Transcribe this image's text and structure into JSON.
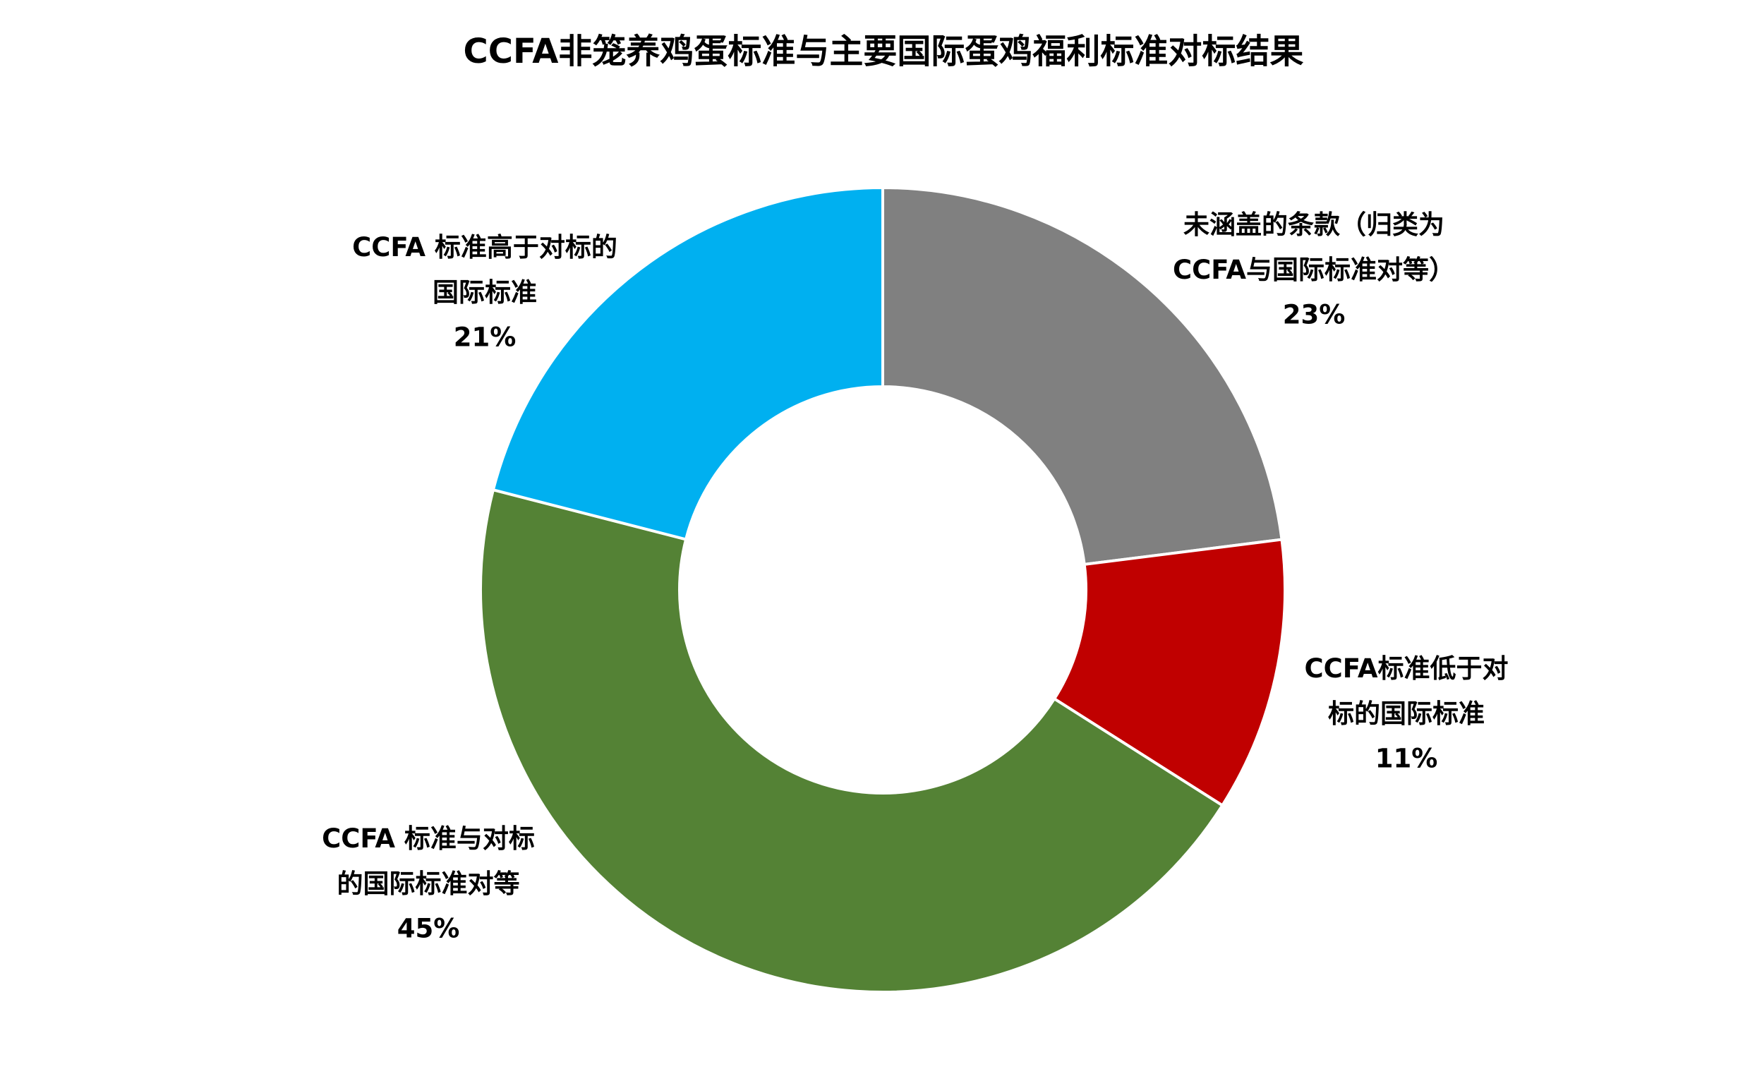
{
  "chart_data": {
    "type": "donut",
    "title": "CCFA非笼养鸡蛋标准与主要国际蛋鸡福利标准对标结果",
    "categories": [
      "未涵盖的条款（归类为\nCCFA与国际标准对等）",
      "CCFA标准低于对\n标的国际标准",
      "CCFA 标准与对标\n的国际标准对等",
      "CCFA 标准高于对标的\n国际标准"
    ],
    "values": [
      23,
      11,
      45,
      21
    ],
    "value_labels": [
      "23%",
      "11%",
      "45%",
      "21%"
    ],
    "colors": [
      "#808080",
      "#c00000",
      "#548235",
      "#00b0f0"
    ]
  }
}
